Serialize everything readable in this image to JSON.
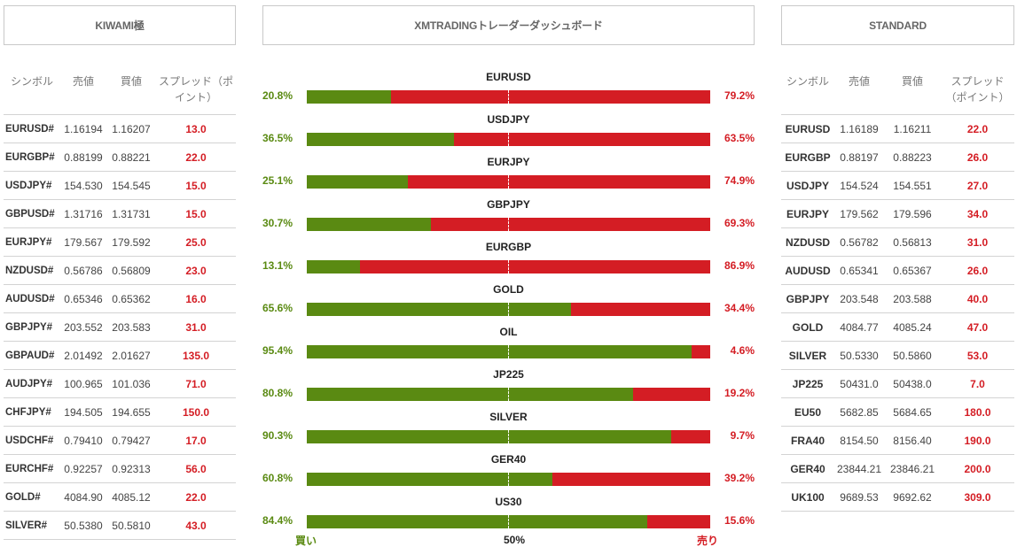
{
  "panels": {
    "left_title": "KIWAMI極",
    "center_title": "XMTRADINGトレーダーダッシュボード",
    "right_title": "STANDARD"
  },
  "left_table": {
    "headers": [
      "シンボル",
      "売値",
      "買値",
      "スプレッド（ポイント）"
    ],
    "rows": [
      {
        "symbol": "EURUSD#",
        "bid": "1.16194",
        "ask": "1.16207",
        "spread": "13.0"
      },
      {
        "symbol": "EURGBP#",
        "bid": "0.88199",
        "ask": "0.88221",
        "spread": "22.0"
      },
      {
        "symbol": "USDJPY#",
        "bid": "154.530",
        "ask": "154.545",
        "spread": "15.0"
      },
      {
        "symbol": "GBPUSD#",
        "bid": "1.31716",
        "ask": "1.31731",
        "spread": "15.0"
      },
      {
        "symbol": "EURJPY#",
        "bid": "179.567",
        "ask": "179.592",
        "spread": "25.0"
      },
      {
        "symbol": "NZDUSD#",
        "bid": "0.56786",
        "ask": "0.56809",
        "spread": "23.0"
      },
      {
        "symbol": "AUDUSD#",
        "bid": "0.65346",
        "ask": "0.65362",
        "spread": "16.0"
      },
      {
        "symbol": "GBPJPY#",
        "bid": "203.552",
        "ask": "203.583",
        "spread": "31.0"
      },
      {
        "symbol": "GBPAUD#",
        "bid": "2.01492",
        "ask": "2.01627",
        "spread": "135.0"
      },
      {
        "symbol": "AUDJPY#",
        "bid": "100.965",
        "ask": "101.036",
        "spread": "71.0"
      },
      {
        "symbol": "CHFJPY#",
        "bid": "194.505",
        "ask": "194.655",
        "spread": "150.0"
      },
      {
        "symbol": "USDCHF#",
        "bid": "0.79410",
        "ask": "0.79427",
        "spread": "17.0"
      },
      {
        "symbol": "EURCHF#",
        "bid": "0.92257",
        "ask": "0.92313",
        "spread": "56.0"
      },
      {
        "symbol": "GOLD#",
        "bid": "4084.90",
        "ask": "4085.12",
        "spread": "22.0"
      },
      {
        "symbol": "SILVER#",
        "bid": "50.5380",
        "ask": "50.5810",
        "spread": "43.0"
      }
    ]
  },
  "right_table": {
    "headers": [
      "シンボル",
      "売値",
      "買値",
      "スプレッド（ポイント）"
    ],
    "rows": [
      {
        "symbol": "EURUSD",
        "bid": "1.16189",
        "ask": "1.16211",
        "spread": "22.0"
      },
      {
        "symbol": "EURGBP",
        "bid": "0.88197",
        "ask": "0.88223",
        "spread": "26.0"
      },
      {
        "symbol": "USDJPY",
        "bid": "154.524",
        "ask": "154.551",
        "spread": "27.0"
      },
      {
        "symbol": "EURJPY",
        "bid": "179.562",
        "ask": "179.596",
        "spread": "34.0"
      },
      {
        "symbol": "NZDUSD",
        "bid": "0.56782",
        "ask": "0.56813",
        "spread": "31.0"
      },
      {
        "symbol": "AUDUSD",
        "bid": "0.65341",
        "ask": "0.65367",
        "spread": "26.0"
      },
      {
        "symbol": "GBPJPY",
        "bid": "203.548",
        "ask": "203.588",
        "spread": "40.0"
      },
      {
        "symbol": "GOLD",
        "bid": "4084.77",
        "ask": "4085.24",
        "spread": "47.0"
      },
      {
        "symbol": "SILVER",
        "bid": "50.5330",
        "ask": "50.5860",
        "spread": "53.0"
      },
      {
        "symbol": "JP225",
        "bid": "50431.0",
        "ask": "50438.0",
        "spread": "7.0"
      },
      {
        "symbol": "EU50",
        "bid": "5682.85",
        "ask": "5684.65",
        "spread": "180.0"
      },
      {
        "symbol": "FRA40",
        "bid": "8154.50",
        "ask": "8156.40",
        "spread": "190.0"
      },
      {
        "symbol": "GER40",
        "bid": "23844.21",
        "ask": "23846.21",
        "spread": "200.0"
      },
      {
        "symbol": "UK100",
        "bid": "9689.53",
        "ask": "9692.62",
        "spread": "309.0"
      }
    ]
  },
  "sentiment": {
    "items": [
      {
        "symbol": "EURUSD",
        "buy_label": "20.8%",
        "sell_label": "79.2%",
        "buy": 20.8
      },
      {
        "symbol": "USDJPY",
        "buy_label": "36.5%",
        "sell_label": "63.5%",
        "buy": 36.5
      },
      {
        "symbol": "EURJPY",
        "buy_label": "25.1%",
        "sell_label": "74.9%",
        "buy": 25.1
      },
      {
        "symbol": "GBPJPY",
        "buy_label": "30.7%",
        "sell_label": "69.3%",
        "buy": 30.7
      },
      {
        "symbol": "EURGBP",
        "buy_label": "13.1%",
        "sell_label": "86.9%",
        "buy": 13.1
      },
      {
        "symbol": "GOLD",
        "buy_label": "65.6%",
        "sell_label": "34.4%",
        "buy": 65.6
      },
      {
        "symbol": "OIL",
        "buy_label": "95.4%",
        "sell_label": "4.6%",
        "buy": 95.4
      },
      {
        "symbol": "JP225",
        "buy_label": "80.8%",
        "sell_label": "19.2%",
        "buy": 80.8
      },
      {
        "symbol": "SILVER",
        "buy_label": "90.3%",
        "sell_label": "9.7%",
        "buy": 90.3
      },
      {
        "symbol": "GER40",
        "buy_label": "60.8%",
        "sell_label": "39.2%",
        "buy": 60.8
      },
      {
        "symbol": "US30",
        "buy_label": "84.4%",
        "sell_label": "15.6%",
        "buy": 84.4
      }
    ],
    "axis_buy": "買い",
    "axis_mid": "50%",
    "axis_sell": "売り"
  },
  "colors": {
    "buy": "#5a8a12",
    "sell": "#d41d24"
  }
}
